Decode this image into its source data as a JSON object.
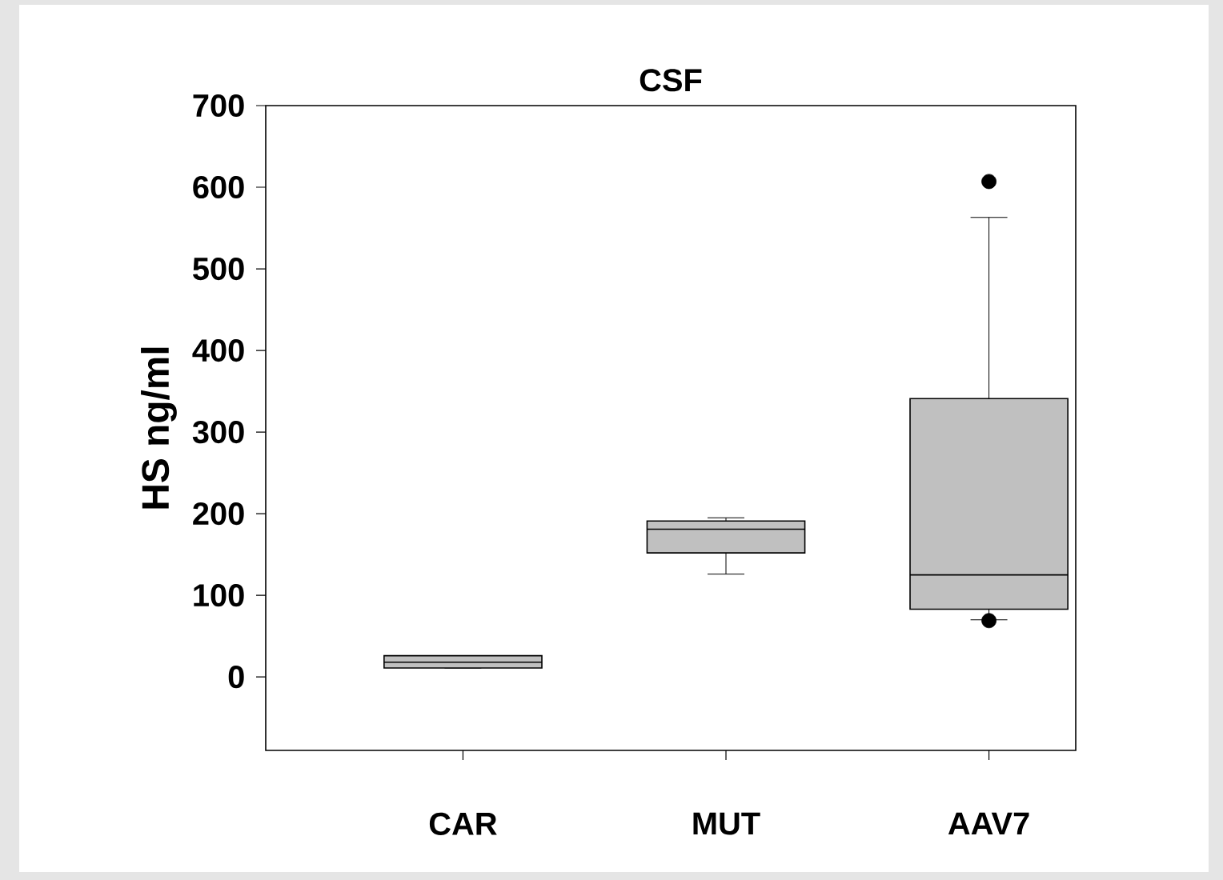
{
  "chart_data": {
    "type": "box",
    "title": "CSF",
    "ylabel": "HS ng/ml",
    "categories": [
      "CAR",
      "MUT",
      "AAV7"
    ],
    "boxes": [
      {
        "low": 11,
        "q1": 11,
        "median": 18,
        "q3": 26,
        "high": 26
      },
      {
        "low": 126,
        "q1": 152,
        "median": 181,
        "q3": 191,
        "high": 195
      },
      {
        "low": 70,
        "q1": 83,
        "median": 125,
        "q3": 341,
        "high": 563,
        "outliers": [
          607,
          69
        ]
      }
    ],
    "color": "#c0c0c0",
    "marker": "circle",
    "ylim": [
      -90,
      700
    ],
    "yticks": [
      0,
      100,
      200,
      300,
      400,
      500,
      600,
      700
    ]
  }
}
